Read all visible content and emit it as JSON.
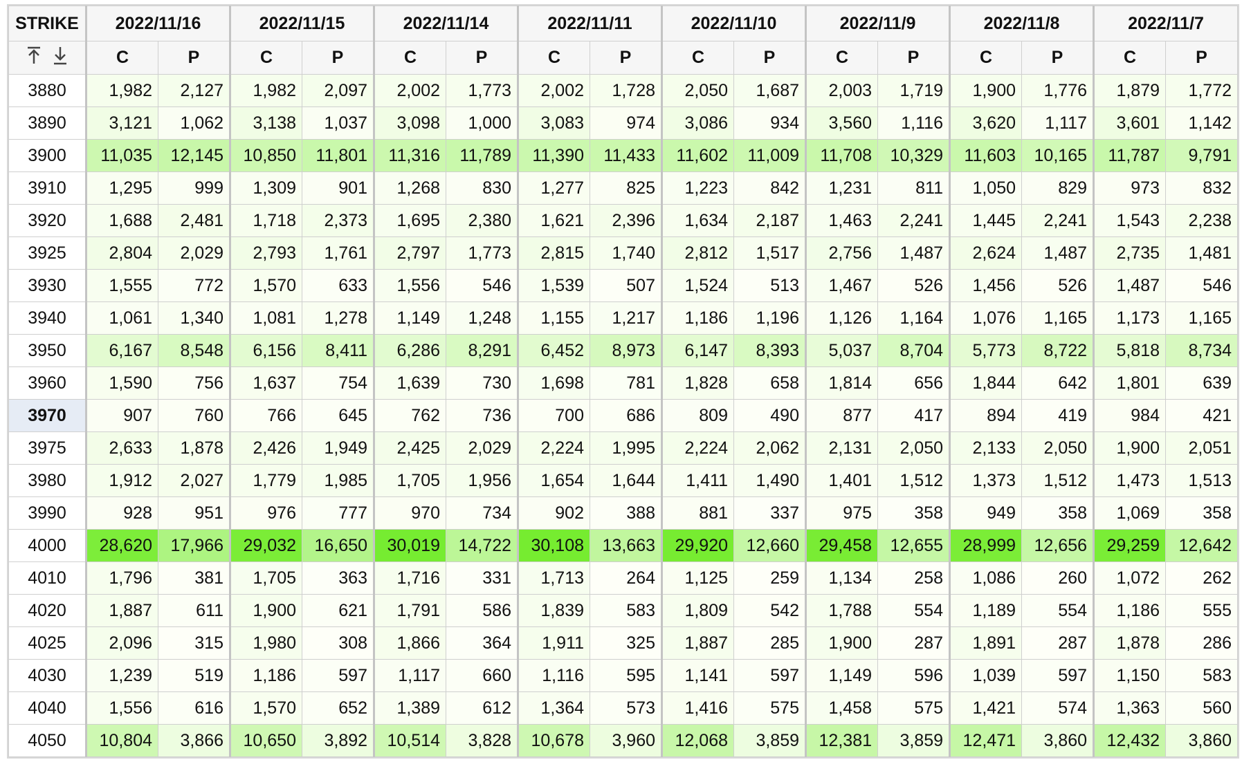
{
  "header": {
    "strike": "STRIKE",
    "dates": [
      "2022/11/16",
      "2022/11/15",
      "2022/11/14",
      "2022/11/11",
      "2022/11/10",
      "2022/11/9",
      "2022/11/8",
      "2022/11/7"
    ],
    "call": "C",
    "put": "P"
  },
  "rows": [
    {
      "strike": "3880",
      "cells": [
        "1,982",
        "2,127",
        "1,982",
        "2,097",
        "2,002",
        "1,773",
        "2,002",
        "1,728",
        "2,050",
        "1,687",
        "2,003",
        "1,719",
        "1,900",
        "1,776",
        "1,879",
        "1,772"
      ]
    },
    {
      "strike": "3890",
      "cells": [
        "3,121",
        "1,062",
        "3,138",
        "1,037",
        "3,098",
        "1,000",
        "3,083",
        "974",
        "3,086",
        "934",
        "3,560",
        "1,116",
        "3,620",
        "1,117",
        "3,601",
        "1,142"
      ]
    },
    {
      "strike": "3900",
      "cells": [
        "11,035",
        "12,145",
        "10,850",
        "11,801",
        "11,316",
        "11,789",
        "11,390",
        "11,433",
        "11,602",
        "11,009",
        "11,708",
        "10,329",
        "11,603",
        "10,165",
        "11,787",
        "9,791"
      ]
    },
    {
      "strike": "3910",
      "cells": [
        "1,295",
        "999",
        "1,309",
        "901",
        "1,268",
        "830",
        "1,277",
        "825",
        "1,223",
        "842",
        "1,231",
        "811",
        "1,050",
        "829",
        "973",
        "832"
      ]
    },
    {
      "strike": "3920",
      "cells": [
        "1,688",
        "2,481",
        "1,718",
        "2,373",
        "1,695",
        "2,380",
        "1,621",
        "2,396",
        "1,634",
        "2,187",
        "1,463",
        "2,241",
        "1,445",
        "2,241",
        "1,543",
        "2,238"
      ]
    },
    {
      "strike": "3925",
      "cells": [
        "2,804",
        "2,029",
        "2,793",
        "1,761",
        "2,797",
        "1,773",
        "2,815",
        "1,740",
        "2,812",
        "1,517",
        "2,756",
        "1,487",
        "2,624",
        "1,487",
        "2,735",
        "1,481"
      ]
    },
    {
      "strike": "3930",
      "cells": [
        "1,555",
        "772",
        "1,570",
        "633",
        "1,556",
        "546",
        "1,539",
        "507",
        "1,524",
        "513",
        "1,467",
        "526",
        "1,456",
        "526",
        "1,487",
        "546"
      ]
    },
    {
      "strike": "3940",
      "cells": [
        "1,061",
        "1,340",
        "1,081",
        "1,278",
        "1,149",
        "1,248",
        "1,155",
        "1,217",
        "1,186",
        "1,196",
        "1,126",
        "1,164",
        "1,076",
        "1,165",
        "1,173",
        "1,165"
      ]
    },
    {
      "strike": "3950",
      "cells": [
        "6,167",
        "8,548",
        "6,156",
        "8,411",
        "6,286",
        "8,291",
        "6,452",
        "8,973",
        "6,147",
        "8,393",
        "5,037",
        "8,704",
        "5,773",
        "8,722",
        "5,818",
        "8,734"
      ]
    },
    {
      "strike": "3960",
      "cells": [
        "1,590",
        "756",
        "1,637",
        "754",
        "1,639",
        "730",
        "1,698",
        "781",
        "1,828",
        "658",
        "1,814",
        "656",
        "1,844",
        "642",
        "1,801",
        "639"
      ]
    },
    {
      "strike": "3970",
      "cells": [
        "907",
        "760",
        "766",
        "645",
        "762",
        "736",
        "700",
        "686",
        "809",
        "490",
        "877",
        "417",
        "894",
        "419",
        "984",
        "421"
      ]
    },
    {
      "strike": "3975",
      "cells": [
        "2,633",
        "1,878",
        "2,426",
        "1,949",
        "2,425",
        "2,029",
        "2,224",
        "1,995",
        "2,224",
        "2,062",
        "2,131",
        "2,050",
        "2,133",
        "2,050",
        "1,900",
        "2,051"
      ]
    },
    {
      "strike": "3980",
      "cells": [
        "1,912",
        "2,027",
        "1,779",
        "1,985",
        "1,705",
        "1,956",
        "1,654",
        "1,644",
        "1,411",
        "1,490",
        "1,401",
        "1,512",
        "1,373",
        "1,512",
        "1,473",
        "1,513"
      ]
    },
    {
      "strike": "3990",
      "cells": [
        "928",
        "951",
        "976",
        "777",
        "970",
        "734",
        "902",
        "388",
        "881",
        "337",
        "975",
        "358",
        "949",
        "358",
        "1,069",
        "358"
      ]
    },
    {
      "strike": "4000",
      "cells": [
        "28,620",
        "17,966",
        "29,032",
        "16,650",
        "30,019",
        "14,722",
        "30,108",
        "13,663",
        "29,920",
        "12,660",
        "29,458",
        "12,655",
        "28,999",
        "12,656",
        "29,259",
        "12,642"
      ]
    },
    {
      "strike": "4010",
      "cells": [
        "1,796",
        "381",
        "1,705",
        "363",
        "1,716",
        "331",
        "1,713",
        "264",
        "1,125",
        "259",
        "1,134",
        "258",
        "1,086",
        "260",
        "1,072",
        "262"
      ]
    },
    {
      "strike": "4020",
      "cells": [
        "1,887",
        "611",
        "1,900",
        "621",
        "1,791",
        "586",
        "1,839",
        "583",
        "1,809",
        "542",
        "1,788",
        "554",
        "1,189",
        "554",
        "1,186",
        "555"
      ]
    },
    {
      "strike": "4025",
      "cells": [
        "2,096",
        "315",
        "1,980",
        "308",
        "1,866",
        "364",
        "1,911",
        "325",
        "1,887",
        "285",
        "1,900",
        "287",
        "1,891",
        "287",
        "1,878",
        "286"
      ]
    },
    {
      "strike": "4030",
      "cells": [
        "1,239",
        "519",
        "1,186",
        "597",
        "1,117",
        "660",
        "1,116",
        "595",
        "1,141",
        "597",
        "1,149",
        "596",
        "1,039",
        "597",
        "1,150",
        "583"
      ]
    },
    {
      "strike": "4040",
      "cells": [
        "1,556",
        "616",
        "1,570",
        "652",
        "1,389",
        "612",
        "1,364",
        "573",
        "1,416",
        "575",
        "1,458",
        "575",
        "1,421",
        "574",
        "1,363",
        "560"
      ]
    },
    {
      "strike": "4050",
      "cells": [
        "10,804",
        "3,866",
        "10,650",
        "3,892",
        "10,514",
        "3,828",
        "10,678",
        "3,960",
        "12,068",
        "3,859",
        "12,381",
        "3,859",
        "12,471",
        "3,860",
        "12,432",
        "3,860"
      ]
    }
  ]
}
